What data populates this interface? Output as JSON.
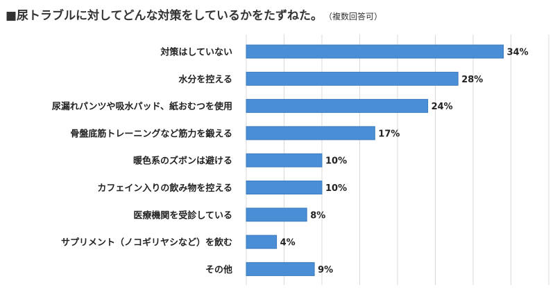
{
  "title": "■尿トラブルに対してどんな対策をしているかをたずねた。",
  "note": "（複数回答可）",
  "colors": {
    "bar": "#4a8fd6",
    "bar_edge": "#3a78bd",
    "grid": "#d9d9d9"
  },
  "chart_data": {
    "type": "bar",
    "orientation": "horizontal",
    "categories": [
      "対策はしていない",
      "水分を控える",
      "尿漏れパンツや吸水パッド、紙おむつを使用",
      "骨盤底筋トレーニングなど筋力を鍛える",
      "暖色系のズボンは避ける",
      "カフェイン入りの飲み物を控える",
      "医療機関を受診している",
      "サプリメント（ノコギリヤシなど）を飲む",
      "その他"
    ],
    "values": [
      34,
      28,
      24,
      17,
      10,
      10,
      8,
      4,
      9
    ],
    "value_labels": [
      "34%",
      "28%",
      "24%",
      "17%",
      "10%",
      "10%",
      "8%",
      "4%",
      "9%"
    ],
    "unit": "%",
    "xlim": [
      0,
      40
    ],
    "grid": true,
    "legend": "none"
  }
}
